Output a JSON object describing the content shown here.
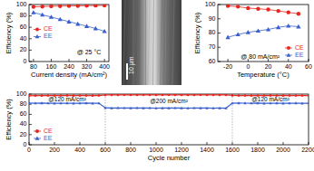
{
  "chart_data": [
    {
      "type": "line",
      "x_label": "Current density (mA/cm²)",
      "y_label": "Efficiency (%)",
      "x": [
        80,
        120,
        160,
        200,
        240,
        280,
        320,
        360,
        400
      ],
      "series": [
        {
          "name": "CE",
          "color": "#e8261f",
          "marker": "circle",
          "values": [
            96,
            96.5,
            97,
            97.3,
            97.5,
            97.7,
            98,
            98.2,
            98.5
          ]
        },
        {
          "name": "EE",
          "color": "#3a5fcd",
          "marker": "triangle",
          "values": [
            86,
            82,
            78,
            74,
            70,
            66,
            62,
            58,
            53
          ]
        }
      ],
      "xlim": [
        60,
        420
      ],
      "xticks": [
        80,
        160,
        240,
        320,
        400
      ],
      "ylim": [
        0,
        100
      ],
      "yticks": [
        0,
        20,
        40,
        60,
        80,
        100
      ],
      "legend": "center left",
      "grid": false,
      "annotations": [
        {
          "text": "@ 25 °C",
          "x": 330,
          "y": 15
        }
      ]
    },
    {
      "type": "line",
      "x_label": "Temperature (°C)",
      "y_label": "Efficiency (%)",
      "x": [
        -20,
        -10,
        0,
        10,
        20,
        30,
        40,
        50
      ],
      "series": [
        {
          "name": "CE",
          "color": "#e8261f",
          "marker": "circle",
          "values": [
            99,
            98.5,
            97.5,
            97,
            96.5,
            95.5,
            94.5,
            93.5
          ]
        },
        {
          "name": "EE",
          "color": "#3a5fcd",
          "marker": "triangle",
          "values": [
            77,
            79,
            80.5,
            81.5,
            82.5,
            84,
            85,
            84.5
          ]
        }
      ],
      "xlim": [
        -30,
        60
      ],
      "xticks": [
        -20,
        0,
        20,
        40,
        60
      ],
      "ylim": [
        60,
        100
      ],
      "yticks": [
        60,
        70,
        80,
        90,
        100
      ],
      "legend": "lower right",
      "grid": false,
      "annotations": [
        {
          "text": "@ 80 mA/cm²",
          "x": 12,
          "y": 63
        }
      ]
    },
    {
      "type": "line",
      "x_label": "Cycle number",
      "y_label": "Efficiency (%)",
      "x": [
        0,
        50,
        100,
        150,
        200,
        250,
        300,
        350,
        400,
        450,
        500,
        550,
        600,
        650,
        700,
        750,
        800,
        850,
        900,
        950,
        1000,
        1050,
        1100,
        1150,
        1200,
        1250,
        1300,
        1350,
        1400,
        1450,
        1500,
        1550,
        1600,
        1650,
        1700,
        1750,
        1800,
        1850,
        1900,
        1950,
        2000,
        2050,
        2100,
        2150,
        2200
      ],
      "series": [
        {
          "name": "CE",
          "color": "#e8261f",
          "marker": "circle",
          "values": [
            96.5,
            97,
            97,
            97.2,
            97,
            97.1,
            97.3,
            97,
            97.2,
            97.1,
            97,
            97.2,
            98.2,
            98.4,
            98.3,
            98.5,
            98.4,
            98.3,
            98.5,
            98.4,
            98.3,
            98.4,
            98.5,
            98.3,
            98.4,
            98.4,
            98.3,
            98.5,
            98.4,
            98.3,
            98.4,
            98.4,
            97.3,
            97.1,
            97.2,
            97,
            97.2,
            97.1,
            97.3,
            97.2,
            97,
            97.1,
            97.2,
            97.1,
            97.2
          ]
        },
        {
          "name": "EE",
          "color": "#3a5fcd",
          "marker": "triangle",
          "values": [
            82.5,
            82,
            82.3,
            82,
            81.8,
            82,
            82.1,
            81.9,
            82,
            82.2,
            81.8,
            82,
            73,
            72.5,
            72.8,
            72.6,
            72.4,
            72.7,
            72.5,
            72.6,
            72.3,
            72.5,
            72.4,
            72.6,
            72.5,
            72.3,
            72.6,
            72.4,
            72.5,
            72.3,
            72.4,
            72.2,
            82,
            82.3,
            82.1,
            82,
            82.2,
            81.9,
            82,
            82.1,
            81.8,
            82,
            82.1,
            81.9,
            82
          ]
        }
      ],
      "xlim": [
        0,
        2200
      ],
      "xticks": [
        0,
        200,
        400,
        600,
        800,
        1000,
        1200,
        1400,
        1600,
        1800,
        2000,
        2200
      ],
      "ylim": [
        0,
        100
      ],
      "yticks": [
        0,
        20,
        40,
        60,
        80,
        100
      ],
      "legend": "lower left",
      "grid": false,
      "vlines": [
        600,
        1600
      ],
      "annotations": [
        {
          "text": "@120 mA/cm²",
          "x": 300,
          "y": 89.5
        },
        {
          "text": "@200 mA/cm²",
          "x": 1100,
          "y": 85
        },
        {
          "text": "@120 mA/cm²",
          "x": 1900,
          "y": 89.5
        }
      ]
    }
  ],
  "image": {
    "scale_bar": "10 μm"
  }
}
